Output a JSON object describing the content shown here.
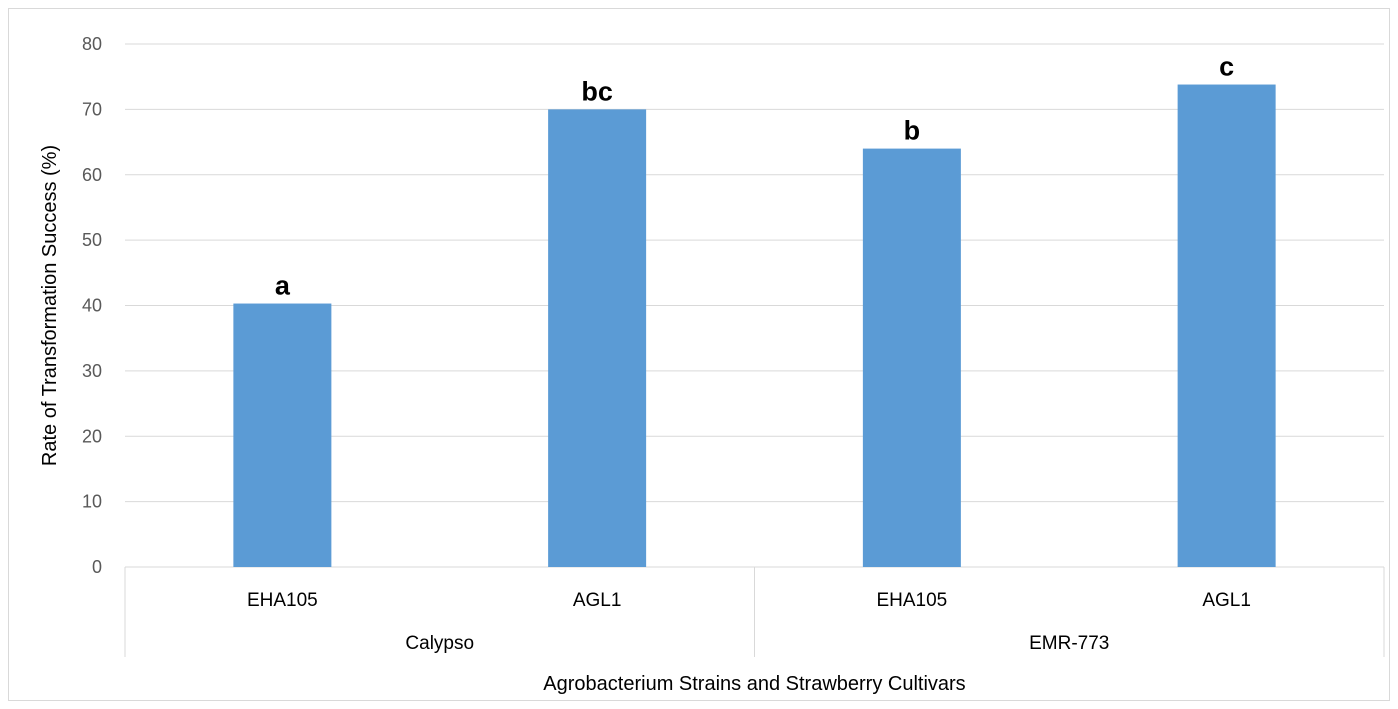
{
  "chart_data": {
    "type": "bar",
    "title": "",
    "xlabel": "Agrobacterium Strains and Strawberry Cultivars",
    "ylabel": "Rate of Transformation Success (%)",
    "ylim": [
      0,
      80
    ],
    "yticks": [
      0,
      10,
      20,
      30,
      40,
      50,
      60,
      70,
      80
    ],
    "grid": true,
    "legend": "none",
    "categories": [
      "EHA105",
      "AGL1",
      "EHA105",
      "AGL1"
    ],
    "groups": [
      {
        "label": "Calypso",
        "categories": [
          "EHA105",
          "AGL1"
        ]
      },
      {
        "label": "EMR-773",
        "categories": [
          "EHA105",
          "AGL1"
        ]
      }
    ],
    "series": [
      {
        "values": [
          40.3,
          70.0,
          64.0,
          73.8
        ],
        "color": "#5b9bd5"
      }
    ],
    "data_labels": [
      "a",
      "bc",
      "b",
      "c"
    ]
  }
}
